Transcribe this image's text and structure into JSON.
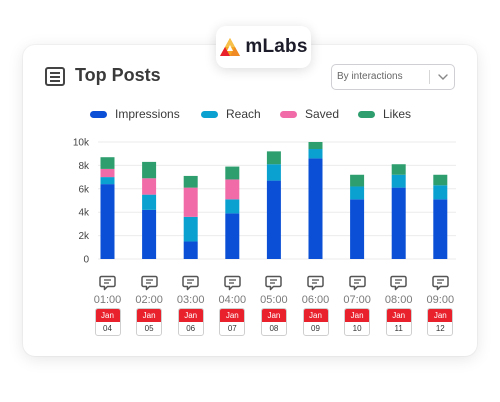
{
  "brand": {
    "name": "mLabs",
    "logo_icon": "mlabs-logo-icon"
  },
  "header": {
    "title": "Top Posts",
    "title_icon": "list-icon"
  },
  "filter": {
    "selected": "By interactions",
    "icon": "chevron-down-icon"
  },
  "colors": {
    "impressions": "#0a4fd6",
    "reach": "#0aa0cf",
    "saved": "#f06ba8",
    "likes": "#2e9e6e"
  },
  "chart_data": {
    "type": "bar",
    "stacked": true,
    "categories": [
      "01:00",
      "02:00",
      "03:00",
      "04:00",
      "05:00",
      "06:00",
      "07:00",
      "08:00",
      "09:00"
    ],
    "series": [
      {
        "name": "Impressions",
        "values": [
          6400,
          4200,
          1500,
          3900,
          6700,
          8600,
          5100,
          6100,
          5100
        ]
      },
      {
        "name": "Reach",
        "values": [
          600,
          1300,
          2100,
          1200,
          1400,
          800,
          1100,
          1100,
          1200
        ]
      },
      {
        "name": "Saved",
        "values": [
          700,
          1400,
          2500,
          1700,
          0,
          0,
          0,
          0,
          0
        ]
      },
      {
        "name": "Likes",
        "values": [
          1000,
          1400,
          1000,
          1100,
          1100,
          600,
          1000,
          900,
          900
        ]
      }
    ],
    "yticks": [
      "0",
      "2k",
      "4k",
      "6k",
      "8k",
      "10k"
    ],
    "ylim": [
      0,
      10000
    ],
    "grid": true,
    "legend_position": "top"
  },
  "days": [
    {
      "time": "01:00",
      "month": "Jan",
      "day": "04"
    },
    {
      "time": "02:00",
      "month": "Jan",
      "day": "05"
    },
    {
      "time": "03:00",
      "month": "Jan",
      "day": "06"
    },
    {
      "time": "04:00",
      "month": "Jan",
      "day": "07"
    },
    {
      "time": "05:00",
      "month": "Jan",
      "day": "08"
    },
    {
      "time": "06:00",
      "month": "Jan",
      "day": "09"
    },
    {
      "time": "07:00",
      "month": "Jan",
      "day": "10"
    },
    {
      "time": "08:00",
      "month": "Jan",
      "day": "11"
    },
    {
      "time": "09:00",
      "month": "Jan",
      "day": "12"
    }
  ],
  "day_icon": "comment-icon"
}
